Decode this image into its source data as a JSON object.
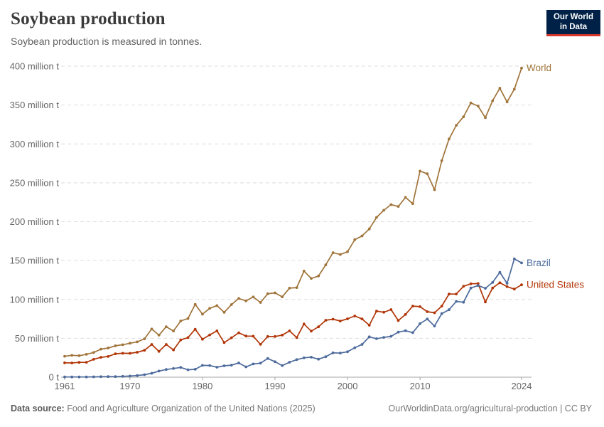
{
  "header": {
    "title": "Soybean production",
    "subtitle": "Soybean production is measured in tonnes."
  },
  "logo": {
    "line1": "Our World",
    "line2": "in Data",
    "bg_color": "#002147",
    "accent_color": "#d4352c"
  },
  "chart_data": {
    "type": "line",
    "title": "Soybean production",
    "subtitle": "Soybean production is measured in tonnes.",
    "unit": "million t",
    "xlim": [
      1961,
      2024
    ],
    "ylim": [
      0,
      400
    ],
    "grid": "horizontal dashed",
    "legend_position": "line-end-labels",
    "x": [
      1961,
      1962,
      1963,
      1964,
      1965,
      1966,
      1967,
      1968,
      1969,
      1970,
      1971,
      1972,
      1973,
      1974,
      1975,
      1976,
      1977,
      1978,
      1979,
      1980,
      1981,
      1982,
      1983,
      1984,
      1985,
      1986,
      1987,
      1988,
      1989,
      1990,
      1991,
      1992,
      1993,
      1994,
      1995,
      1996,
      1997,
      1998,
      1999,
      2000,
      2001,
      2002,
      2003,
      2004,
      2005,
      2006,
      2007,
      2008,
      2009,
      2010,
      2011,
      2012,
      2013,
      2014,
      2015,
      2016,
      2017,
      2018,
      2019,
      2020,
      2021,
      2022,
      2023,
      2024
    ],
    "x_ticks": [
      1961,
      1970,
      1980,
      1990,
      2000,
      2010,
      2024
    ],
    "y_ticks": [
      0,
      50,
      100,
      150,
      200,
      250,
      300,
      350,
      400
    ],
    "y_tick_labels": [
      "0 t",
      "50 million t",
      "100 million t",
      "150 million t",
      "200 million t",
      "250 million t",
      "300 million t",
      "350 million t",
      "400 million t"
    ],
    "series": [
      {
        "name": "World",
        "color": "#A0743A",
        "values": [
          26.9,
          28.1,
          27.6,
          29.4,
          31.8,
          36.1,
          37.5,
          40.4,
          41.7,
          43.7,
          45.4,
          49.3,
          62.0,
          54.1,
          64.9,
          59.4,
          72.3,
          75.4,
          93.7,
          81.0,
          88.5,
          92.1,
          83.4,
          93.4,
          101.2,
          98.2,
          103.2,
          96.1,
          107.3,
          108.5,
          103.3,
          114.5,
          115.2,
          136.5,
          127.0,
          130.2,
          144.4,
          160.1,
          157.8,
          161.3,
          176.8,
          181.7,
          190.7,
          205.5,
          214.6,
          222.0,
          219.6,
          231.2,
          223.2,
          265.1,
          261.6,
          241.1,
          278.4,
          306.3,
          323.9,
          334.9,
          352.8,
          348.7,
          333.7,
          355.5,
          371.7,
          354.0,
          370.4,
          397.5
        ]
      },
      {
        "name": "United States",
        "color": "#B13507",
        "values": [
          18.5,
          18.3,
          19.0,
          19.1,
          23.0,
          25.5,
          26.6,
          30.1,
          30.8,
          30.7,
          32.0,
          34.6,
          42.1,
          33.1,
          42.1,
          35.1,
          48.0,
          50.9,
          61.7,
          48.8,
          54.4,
          59.6,
          44.5,
          50.6,
          57.1,
          52.9,
          52.7,
          42.2,
          52.4,
          52.4,
          54.1,
          59.6,
          50.9,
          68.4,
          59.2,
          64.8,
          73.2,
          74.6,
          72.2,
          75.1,
          78.7,
          75.0,
          66.8,
          85.0,
          83.5,
          87.0,
          72.9,
          80.7,
          91.4,
          90.7,
          84.2,
          82.8,
          91.4,
          106.9,
          107.0,
          116.9,
          120.1,
          120.5,
          96.7,
          114.7,
          121.5,
          116.4,
          113.3,
          118.8
        ]
      },
      {
        "name": "Brazil",
        "color": "#4C6A9C",
        "values": [
          0.3,
          0.3,
          0.3,
          0.3,
          0.5,
          0.6,
          0.7,
          0.7,
          1.1,
          1.5,
          2.1,
          3.2,
          5.0,
          7.9,
          9.9,
          11.2,
          12.5,
          9.5,
          10.2,
          15.2,
          15.0,
          12.8,
          14.6,
          15.5,
          18.3,
          13.3,
          17.0,
          18.0,
          24.1,
          19.9,
          14.9,
          19.2,
          22.6,
          24.9,
          25.7,
          23.2,
          26.4,
          31.3,
          31.0,
          32.7,
          37.9,
          42.1,
          51.9,
          49.5,
          51.2,
          52.5,
          57.9,
          59.8,
          57.3,
          68.8,
          74.8,
          65.8,
          81.7,
          86.8,
          97.5,
          96.4,
          114.7,
          117.9,
          114.3,
          121.8,
          134.9,
          120.7,
          152.1,
          147.0
        ]
      }
    ]
  },
  "footer": {
    "source_label": "Data source:",
    "source_text": " Food and Agriculture Organization of the United Nations (2025)",
    "right_text": "OurWorldinData.org/agricultural-production | CC BY"
  }
}
